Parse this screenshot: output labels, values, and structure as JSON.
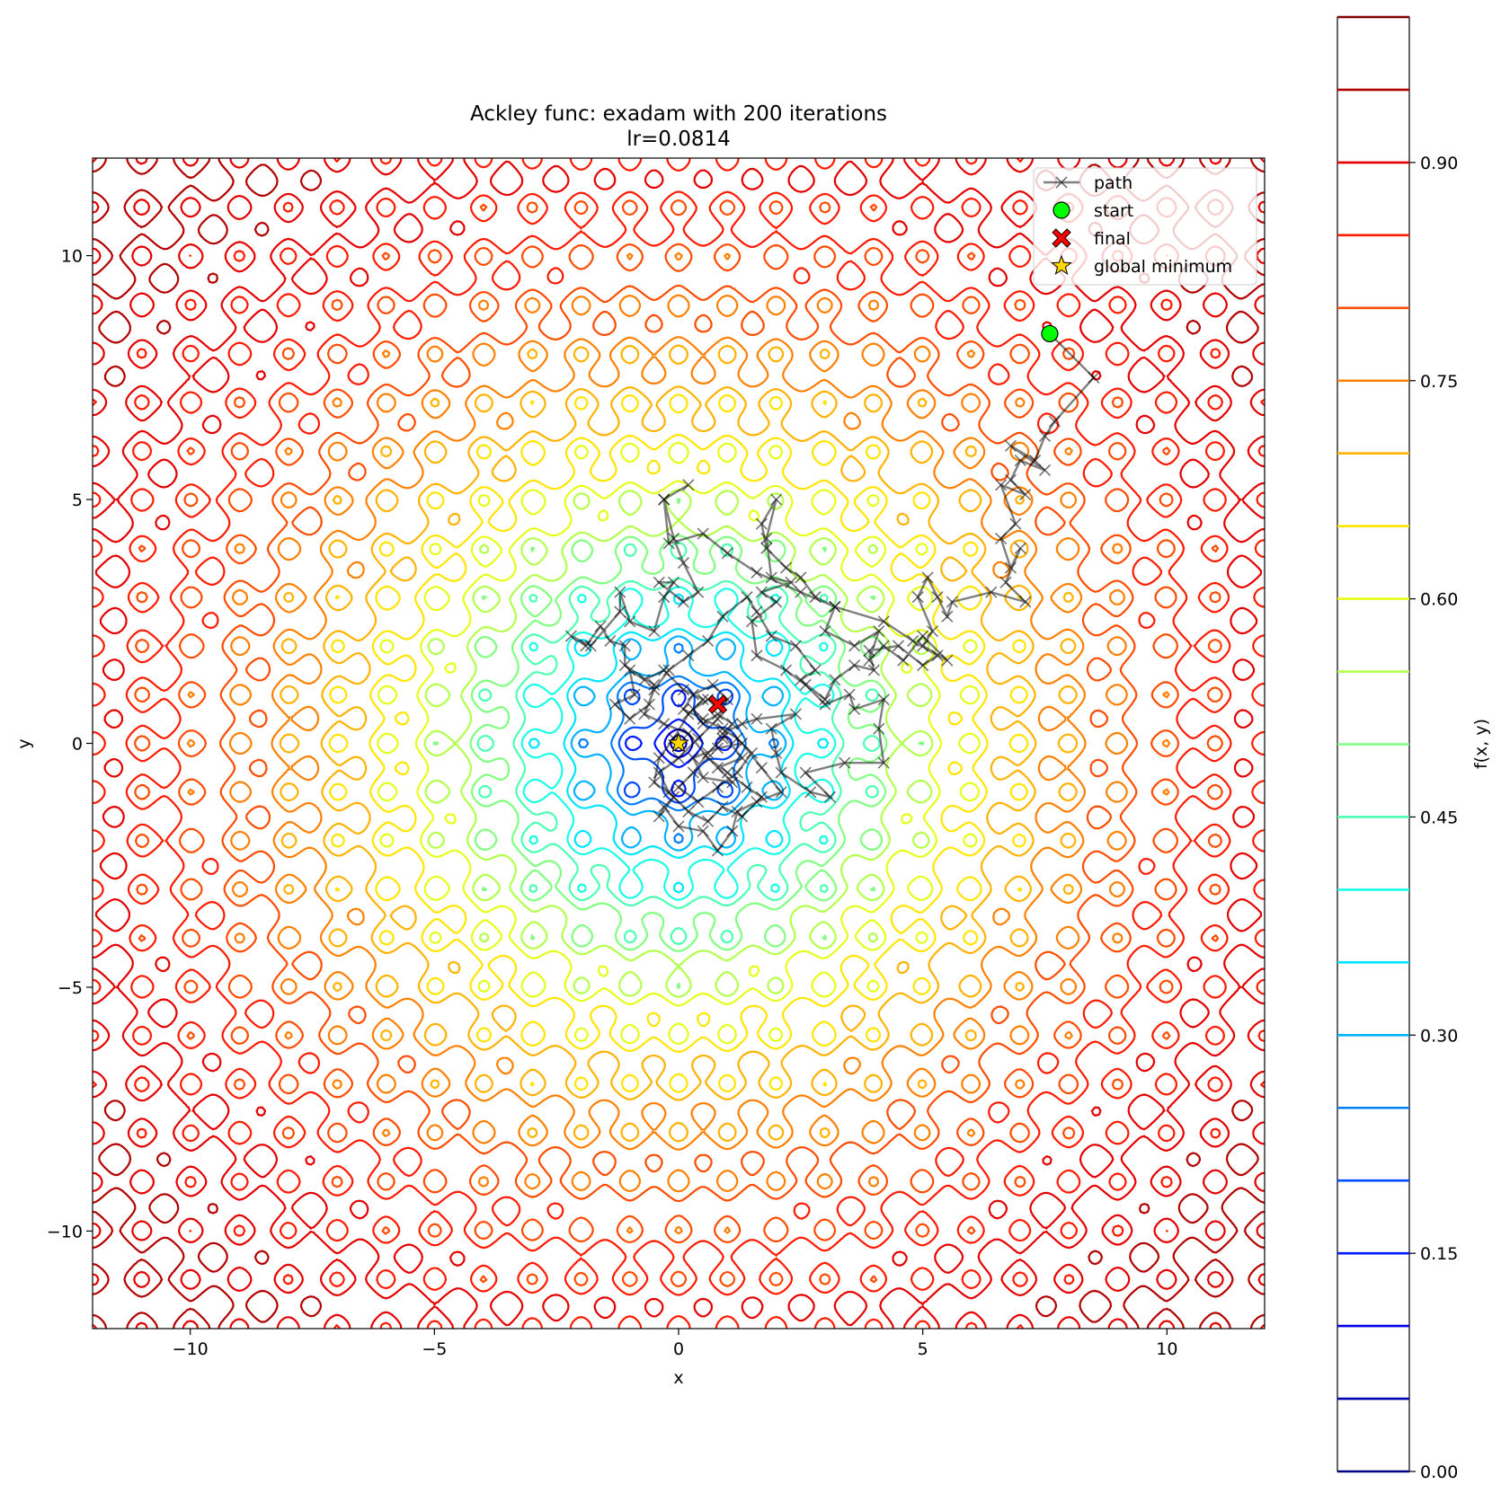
{
  "chart_data": {
    "type": "contour",
    "title": "Ackley func: exadam with 200 iterations",
    "subtitle": "lr=0.0814",
    "xlabel": "x",
    "ylabel": "y",
    "xlim": [
      -12,
      12
    ],
    "ylim": [
      -12,
      12
    ],
    "xticks": [
      -10,
      -5,
      0,
      5,
      10
    ],
    "yticks": [
      -10,
      -5,
      0,
      5,
      10
    ],
    "xtick_labels": [
      "−10",
      "−5",
      "0",
      "5",
      "10"
    ],
    "ytick_labels": [
      "−10",
      "−5",
      "0",
      "5",
      "10"
    ],
    "grid": false,
    "function": "Ackley (normalized to 0–1)",
    "contour_levels": [
      0.0,
      0.05,
      0.1,
      0.15,
      0.2,
      0.25,
      0.3,
      0.35,
      0.4,
      0.45,
      0.5,
      0.55,
      0.6,
      0.65,
      0.7,
      0.75,
      0.8,
      0.85,
      0.9,
      0.95,
      1.0
    ],
    "colormap": "jet",
    "colorbar": {
      "label": "f(x, y)",
      "range": [
        0,
        1
      ],
      "ticks": [
        0.0,
        0.15,
        0.3,
        0.45,
        0.6,
        0.75,
        0.9
      ],
      "tick_labels": [
        "0.00",
        "0.15",
        "0.30",
        "0.45",
        "0.60",
        "0.75",
        "0.90"
      ]
    },
    "legend": {
      "placement": "top-right",
      "entries": [
        "path",
        "start",
        "final",
        "global minimum"
      ]
    },
    "series": [
      {
        "name": "path",
        "style": "line-with-x-markers",
        "color": "#000000",
        "points": [
          [
            7.6,
            8.4
          ],
          [
            8.5,
            7.5
          ],
          [
            7.7,
            6.6
          ],
          [
            7.5,
            6.3
          ],
          [
            7.3,
            5.8
          ],
          [
            6.8,
            6.1
          ],
          [
            7.5,
            5.6
          ],
          [
            7.0,
            5.8
          ],
          [
            6.8,
            5.4
          ],
          [
            7.1,
            5.1
          ],
          [
            6.6,
            5.3
          ],
          [
            6.9,
            4.5
          ],
          [
            6.6,
            4.2
          ],
          [
            6.8,
            3.6
          ],
          [
            7.0,
            4.0
          ],
          [
            6.7,
            3.3
          ],
          [
            7.1,
            2.9
          ],
          [
            6.4,
            3.1
          ],
          [
            5.6,
            2.9
          ],
          [
            5.5,
            2.6
          ],
          [
            5.3,
            3.0
          ],
          [
            5.1,
            3.4
          ],
          [
            4.9,
            3.0
          ],
          [
            5.2,
            2.3
          ],
          [
            5.0,
            2.0
          ],
          [
            5.5,
            1.7
          ],
          [
            5.0,
            2.2
          ],
          [
            4.6,
            1.7
          ],
          [
            4.2,
            2.0
          ],
          [
            3.9,
            1.7
          ],
          [
            4.1,
            2.3
          ],
          [
            3.6,
            2.0
          ],
          [
            3.0,
            2.3
          ],
          [
            3.2,
            2.8
          ],
          [
            2.8,
            3.0
          ],
          [
            2.5,
            3.4
          ],
          [
            2.2,
            3.6
          ],
          [
            1.8,
            4.0
          ],
          [
            1.7,
            4.5
          ],
          [
            2.0,
            5.0
          ],
          [
            1.8,
            4.2
          ],
          [
            1.9,
            3.4
          ],
          [
            2.3,
            3.3
          ],
          [
            1.7,
            3.1
          ],
          [
            2.0,
            2.9
          ],
          [
            1.5,
            2.5
          ],
          [
            1.6,
            1.8
          ],
          [
            2.2,
            1.5
          ],
          [
            2.6,
            1.2
          ],
          [
            3.0,
            0.8
          ],
          [
            3.5,
            1.0
          ],
          [
            3.6,
            0.7
          ],
          [
            4.2,
            0.9
          ],
          [
            4.1,
            0.3
          ],
          [
            4.2,
            -0.4
          ],
          [
            3.4,
            -0.4
          ],
          [
            2.6,
            -0.6
          ],
          [
            3.1,
            -1.1
          ],
          [
            2.7,
            -1.0
          ],
          [
            2.1,
            -0.6
          ],
          [
            2.0,
            -0.2
          ],
          [
            1.9,
            0.3
          ],
          [
            2.4,
            0.6
          ],
          [
            1.6,
            0.5
          ],
          [
            1.3,
            0.4
          ],
          [
            0.9,
            0.2
          ],
          [
            1.3,
            -0.3
          ],
          [
            0.8,
            -0.5
          ],
          [
            1.1,
            -0.8
          ],
          [
            0.5,
            -0.7
          ],
          [
            0.3,
            -0.3
          ],
          [
            0.8,
            -0.1
          ],
          [
            1.3,
            0.0
          ],
          [
            1.7,
            -0.5
          ],
          [
            2.1,
            -1.0
          ],
          [
            1.6,
            -1.2
          ],
          [
            1.2,
            -1.4
          ],
          [
            1.1,
            -1.8
          ],
          [
            0.8,
            -2.2
          ],
          [
            0.5,
            -1.8
          ],
          [
            0.0,
            -1.7
          ],
          [
            -0.3,
            -1.3
          ],
          [
            -0.4,
            -1.5
          ],
          [
            -0.1,
            -1.1
          ],
          [
            -0.5,
            -0.8
          ],
          [
            -0.4,
            -0.3
          ],
          [
            -0.1,
            0.1
          ],
          [
            0.2,
            0.6
          ],
          [
            0.5,
            0.9
          ],
          [
            0.1,
            1.1
          ],
          [
            -0.3,
            1.5
          ],
          [
            -0.7,
            1.3
          ],
          [
            -1.0,
            1.5
          ],
          [
            -0.9,
            1.0
          ],
          [
            -1.3,
            0.8
          ],
          [
            -1.0,
            0.5
          ],
          [
            -0.6,
            0.8
          ],
          [
            -0.5,
            1.2
          ],
          [
            -1.1,
            1.6
          ],
          [
            -1.1,
            2.0
          ],
          [
            -1.4,
            2.1
          ],
          [
            -1.6,
            2.4
          ],
          [
            -1.9,
            2.0
          ],
          [
            -2.2,
            2.2
          ],
          [
            -1.8,
            2.0
          ],
          [
            -1.2,
            2.7
          ],
          [
            -1.2,
            3.1
          ],
          [
            -1.0,
            2.5
          ],
          [
            -0.5,
            2.3
          ],
          [
            -0.3,
            3.0
          ],
          [
            -0.1,
            3.3
          ],
          [
            -0.4,
            3.3
          ],
          [
            0.1,
            2.9
          ],
          [
            0.4,
            3.1
          ],
          [
            0.1,
            3.7
          ],
          [
            -0.1,
            4.2
          ],
          [
            -0.3,
            5.0
          ],
          [
            0.2,
            5.3
          ],
          [
            -0.3,
            5.0
          ],
          [
            -0.2,
            4.1
          ],
          [
            0.5,
            4.3
          ],
          [
            1.0,
            3.9
          ],
          [
            1.6,
            3.5
          ],
          [
            2.5,
            3.1
          ],
          [
            3.2,
            2.8
          ],
          [
            4.2,
            2.5
          ],
          [
            4.8,
            2.1
          ],
          [
            5.3,
            1.8
          ],
          [
            5.0,
            1.6
          ],
          [
            4.5,
            2.0
          ],
          [
            3.9,
            1.9
          ],
          [
            4.0,
            1.5
          ],
          [
            3.6,
            1.6
          ],
          [
            3.2,
            1.3
          ],
          [
            3.0,
            0.9
          ],
          [
            2.5,
            1.3
          ],
          [
            2.8,
            1.5
          ],
          [
            2.4,
            2.0
          ],
          [
            1.9,
            2.2
          ],
          [
            1.6,
            2.7
          ],
          [
            1.4,
            3.0
          ],
          [
            0.9,
            2.6
          ],
          [
            0.6,
            2.1
          ],
          [
            0.2,
            1.8
          ],
          [
            -0.2,
            1.5
          ],
          [
            -0.5,
            1.1
          ],
          [
            -0.7,
            0.6
          ],
          [
            -0.3,
            0.4
          ],
          [
            0.2,
            0.2
          ],
          [
            0.6,
            -0.3
          ],
          [
            1.0,
            -0.6
          ],
          [
            1.4,
            -0.9
          ],
          [
            1.7,
            -1.1
          ],
          [
            1.3,
            -1.5
          ],
          [
            0.9,
            -1.3
          ],
          [
            0.6,
            -1.6
          ],
          [
            0.2,
            -1.4
          ],
          [
            -0.2,
            -1.0
          ],
          [
            -0.4,
            -0.6
          ],
          [
            0.0,
            -0.3
          ],
          [
            0.4,
            0.1
          ],
          [
            0.8,
            0.5
          ],
          [
            1.0,
            0.9
          ],
          [
            0.7,
            1.2
          ],
          [
            0.3,
            1.0
          ],
          [
            0.1,
            0.7
          ],
          [
            0.5,
            0.5
          ],
          [
            0.9,
            0.3
          ],
          [
            1.2,
            0.1
          ],
          [
            1.5,
            -0.2
          ],
          [
            1.2,
            -0.6
          ],
          [
            0.8,
            -0.9
          ],
          [
            0.4,
            -1.2
          ],
          [
            0.0,
            -0.9
          ],
          [
            0.3,
            -0.6
          ],
          [
            0.6,
            -0.2
          ],
          [
            0.9,
            0.1
          ],
          [
            1.1,
            0.4
          ],
          [
            0.8,
            0.6
          ],
          [
            0.5,
            0.4
          ],
          [
            0.3,
            0.7
          ],
          [
            0.6,
            0.9
          ],
          [
            0.8,
            0.8
          ]
        ]
      },
      {
        "name": "start",
        "style": "circle",
        "color": "#00ff00",
        "points": [
          [
            7.6,
            8.4
          ]
        ]
      },
      {
        "name": "final",
        "style": "x-filled",
        "color": "#ff0000",
        "points": [
          [
            0.8,
            0.8
          ]
        ]
      },
      {
        "name": "global minimum",
        "style": "star",
        "color": "#ffd700",
        "points": [
          [
            0.0,
            0.0
          ]
        ]
      }
    ]
  }
}
